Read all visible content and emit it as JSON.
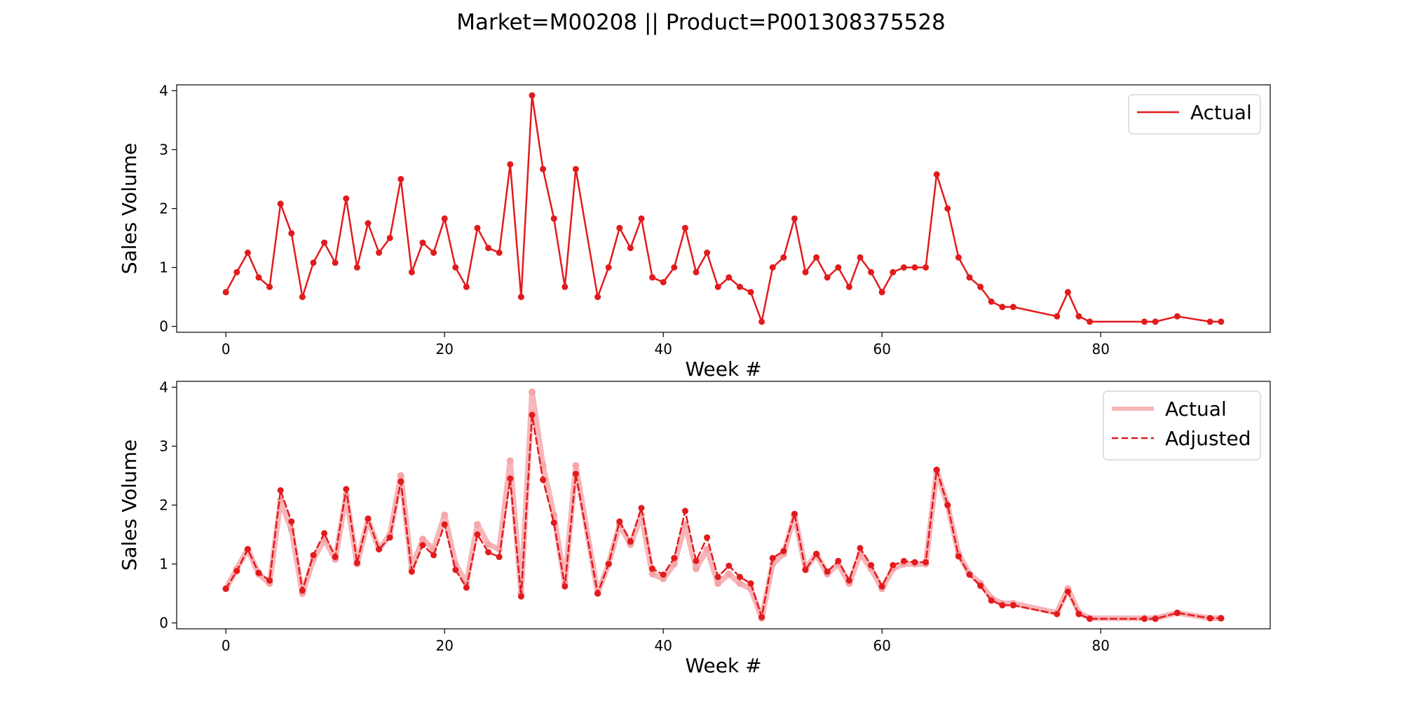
{
  "figure": {
    "title": "Market=M00208 || Product=P001308375528"
  },
  "colors": {
    "actual_line": "#e31a1c",
    "actual_faded": "#f7b6b9",
    "adjusted_line": "#e31a1c",
    "marker": "#e31a1c",
    "marker_faded": "#f4a6aa"
  },
  "chart_data": [
    {
      "type": "line",
      "xlabel": "Week #",
      "ylabel": "Sales Volume",
      "xlim": [
        -4.5,
        95.5
      ],
      "ylim": [
        -0.1,
        4.1
      ],
      "xticks": [
        0,
        20,
        40,
        60,
        80
      ],
      "yticks": [
        0,
        1,
        2,
        3,
        4
      ],
      "legend_position": "top-right",
      "series": [
        {
          "name": "Actual",
          "style": "solid",
          "x": [
            0,
            1,
            2,
            3,
            4,
            5,
            6,
            7,
            8,
            9,
            10,
            11,
            12,
            13,
            14,
            15,
            16,
            17,
            18,
            19,
            20,
            21,
            22,
            23,
            24,
            25,
            26,
            27,
            28,
            29,
            30,
            31,
            32,
            34,
            35,
            36,
            37,
            38,
            39,
            40,
            41,
            42,
            43,
            44,
            45,
            46,
            47,
            48,
            49,
            50,
            51,
            52,
            53,
            54,
            55,
            56,
            57,
            58,
            59,
            60,
            61,
            62,
            63,
            64,
            65,
            66,
            67,
            68,
            69,
            70,
            71,
            72,
            76,
            77,
            78,
            79,
            84,
            85,
            87,
            90,
            91
          ],
          "y": [
            0.58,
            0.92,
            1.25,
            0.83,
            0.67,
            2.08,
            1.58,
            0.5,
            1.08,
            1.42,
            1.08,
            2.17,
            1.0,
            1.75,
            1.25,
            1.5,
            2.5,
            0.92,
            1.42,
            1.25,
            1.83,
            1.0,
            0.67,
            1.67,
            1.33,
            1.25,
            2.75,
            0.5,
            3.92,
            2.67,
            1.83,
            0.67,
            2.67,
            0.5,
            1.0,
            1.67,
            1.33,
            1.83,
            0.83,
            0.75,
            1.0,
            1.67,
            0.92,
            1.25,
            0.67,
            0.83,
            0.67,
            0.58,
            0.08,
            1.0,
            1.17,
            1.83,
            0.92,
            1.17,
            0.83,
            1.0,
            0.67,
            1.17,
            0.92,
            0.58,
            0.92,
            1.0,
            1.0,
            1.0,
            2.58,
            2.0,
            1.17,
            0.83,
            0.67,
            0.42,
            0.33,
            0.33,
            0.17,
            0.58,
            0.17,
            0.08,
            0.08,
            0.08,
            0.17,
            0.08,
            0.08
          ]
        }
      ]
    },
    {
      "type": "line",
      "xlabel": "Week #",
      "ylabel": "Sales Volume",
      "xlim": [
        -4.5,
        95.5
      ],
      "ylim": [
        -0.1,
        4.1
      ],
      "xticks": [
        0,
        20,
        40,
        60,
        80
      ],
      "yticks": [
        0,
        1,
        2,
        3,
        4
      ],
      "legend_position": "top-right",
      "series": [
        {
          "name": "Actual",
          "style": "faded-thick",
          "x": [
            0,
            1,
            2,
            3,
            4,
            5,
            6,
            7,
            8,
            9,
            10,
            11,
            12,
            13,
            14,
            15,
            16,
            17,
            18,
            19,
            20,
            21,
            22,
            23,
            24,
            25,
            26,
            27,
            28,
            29,
            30,
            31,
            32,
            34,
            35,
            36,
            37,
            38,
            39,
            40,
            41,
            42,
            43,
            44,
            45,
            46,
            47,
            48,
            49,
            50,
            51,
            52,
            53,
            54,
            55,
            56,
            57,
            58,
            59,
            60,
            61,
            62,
            63,
            64,
            65,
            66,
            67,
            68,
            69,
            70,
            71,
            72,
            76,
            77,
            78,
            79,
            84,
            85,
            87,
            90,
            91
          ],
          "y": [
            0.58,
            0.92,
            1.25,
            0.83,
            0.67,
            2.08,
            1.58,
            0.5,
            1.08,
            1.42,
            1.08,
            2.17,
            1.0,
            1.75,
            1.25,
            1.5,
            2.5,
            0.92,
            1.42,
            1.25,
            1.83,
            1.0,
            0.67,
            1.67,
            1.33,
            1.25,
            2.75,
            0.5,
            3.92,
            2.67,
            1.83,
            0.67,
            2.67,
            0.5,
            1.0,
            1.67,
            1.33,
            1.83,
            0.83,
            0.75,
            1.0,
            1.67,
            0.92,
            1.25,
            0.67,
            0.83,
            0.67,
            0.58,
            0.08,
            1.0,
            1.17,
            1.83,
            0.92,
            1.17,
            0.83,
            1.0,
            0.67,
            1.17,
            0.92,
            0.58,
            0.92,
            1.0,
            1.0,
            1.0,
            2.58,
            2.0,
            1.17,
            0.83,
            0.67,
            0.42,
            0.33,
            0.33,
            0.17,
            0.58,
            0.17,
            0.08,
            0.08,
            0.08,
            0.17,
            0.08,
            0.08
          ]
        },
        {
          "name": "Adjusted",
          "style": "dashed",
          "x": [
            0,
            1,
            2,
            3,
            4,
            5,
            6,
            7,
            8,
            9,
            10,
            11,
            12,
            13,
            14,
            15,
            16,
            17,
            18,
            19,
            20,
            21,
            22,
            23,
            24,
            25,
            26,
            27,
            28,
            29,
            30,
            31,
            32,
            34,
            35,
            36,
            37,
            38,
            39,
            40,
            41,
            42,
            43,
            44,
            45,
            46,
            47,
            48,
            49,
            50,
            51,
            52,
            53,
            54,
            55,
            56,
            57,
            58,
            59,
            60,
            61,
            62,
            63,
            64,
            65,
            66,
            67,
            68,
            69,
            70,
            71,
            72,
            76,
            77,
            78,
            79,
            84,
            85,
            87,
            90,
            91
          ],
          "y": [
            0.58,
            0.88,
            1.25,
            0.85,
            0.72,
            2.25,
            1.72,
            0.55,
            1.15,
            1.52,
            1.12,
            2.27,
            1.02,
            1.77,
            1.25,
            1.45,
            2.4,
            0.87,
            1.32,
            1.15,
            1.67,
            0.9,
            0.6,
            1.5,
            1.2,
            1.12,
            2.45,
            0.45,
            3.53,
            2.43,
            1.7,
            0.62,
            2.53,
            0.5,
            1.0,
            1.72,
            1.38,
            1.95,
            0.92,
            0.82,
            1.1,
            1.9,
            1.05,
            1.45,
            0.78,
            0.97,
            0.78,
            0.67,
            0.1,
            1.1,
            1.22,
            1.85,
            0.9,
            1.17,
            0.87,
            1.05,
            0.72,
            1.27,
            0.98,
            0.62,
            0.98,
            1.05,
            1.03,
            1.03,
            2.6,
            2.0,
            1.13,
            0.82,
            0.63,
            0.38,
            0.3,
            0.3,
            0.15,
            0.53,
            0.15,
            0.07,
            0.07,
            0.07,
            0.17,
            0.08,
            0.08
          ]
        }
      ]
    }
  ]
}
